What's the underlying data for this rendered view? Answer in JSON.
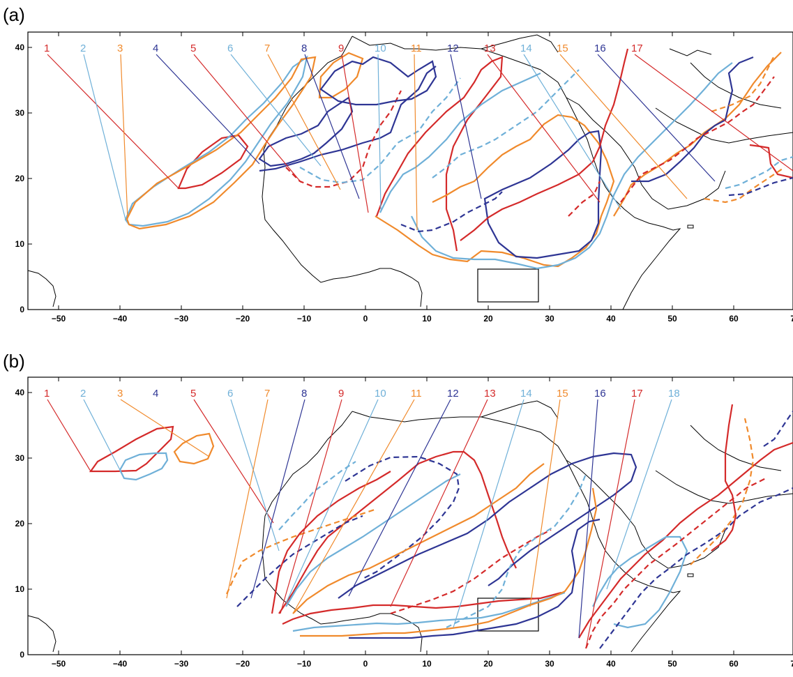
{
  "colors": {
    "red": "#d42a2a",
    "blue": "#2e3594",
    "orange": "#f08a2c",
    "lightblue": "#6fb0d8",
    "coast": "#000000"
  },
  "panels": [
    {
      "label": "(a)",
      "x_ticks": [
        "−50",
        "−40",
        "−30",
        "−20",
        "−10",
        "0",
        "10",
        "20",
        "30",
        "40",
        "50",
        "60",
        "70"
      ],
      "y_ticks": [
        "0",
        "10",
        "20",
        "30",
        "40"
      ],
      "contours": [
        {
          "n": "1",
          "color": "red"
        },
        {
          "n": "2",
          "color": "lightblue"
        },
        {
          "n": "3",
          "color": "orange"
        },
        {
          "n": "4",
          "color": "blue"
        },
        {
          "n": "5",
          "color": "red"
        },
        {
          "n": "6",
          "color": "lightblue"
        },
        {
          "n": "7",
          "color": "orange"
        },
        {
          "n": "8",
          "color": "blue"
        },
        {
          "n": "9",
          "color": "red"
        },
        {
          "n": "10",
          "color": "lightblue"
        },
        {
          "n": "11",
          "color": "orange"
        },
        {
          "n": "12",
          "color": "blue"
        },
        {
          "n": "13",
          "color": "red"
        },
        {
          "n": "14",
          "color": "lightblue"
        },
        {
          "n": "15",
          "color": "orange"
        },
        {
          "n": "16",
          "color": "blue"
        },
        {
          "n": "17",
          "color": "red"
        }
      ]
    },
    {
      "label": "(b)",
      "x_ticks": [
        "−50",
        "−40",
        "−30",
        "−20",
        "−10",
        "0",
        "10",
        "20",
        "30",
        "40",
        "50",
        "60",
        "70"
      ],
      "y_ticks": [
        "0",
        "10",
        "20",
        "30",
        "40"
      ],
      "contours": [
        {
          "n": "1",
          "color": "red"
        },
        {
          "n": "2",
          "color": "lightblue"
        },
        {
          "n": "3",
          "color": "orange"
        },
        {
          "n": "4",
          "color": "blue"
        },
        {
          "n": "5",
          "color": "red"
        },
        {
          "n": "6",
          "color": "lightblue"
        },
        {
          "n": "7",
          "color": "orange"
        },
        {
          "n": "8",
          "color": "blue"
        },
        {
          "n": "9",
          "color": "red"
        },
        {
          "n": "10",
          "color": "lightblue"
        },
        {
          "n": "11",
          "color": "orange"
        },
        {
          "n": "12",
          "color": "blue"
        },
        {
          "n": "13",
          "color": "red"
        },
        {
          "n": "14",
          "color": "lightblue"
        },
        {
          "n": "15",
          "color": "orange"
        },
        {
          "n": "16",
          "color": "blue"
        },
        {
          "n": "17",
          "color": "red"
        },
        {
          "n": "18",
          "color": "lightblue"
        }
      ]
    }
  ]
}
